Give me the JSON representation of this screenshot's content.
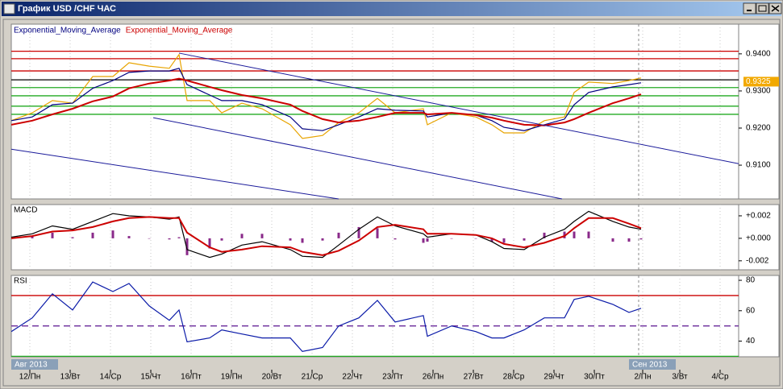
{
  "window": {
    "title": "График USD /CHF ЧАС"
  },
  "chart_data": [
    {
      "type": "line",
      "grid": true,
      "xlim": [
        -0.46,
        17.58
      ],
      "x": [
        -0.46,
        0.06,
        0.56,
        1.06,
        1.56,
        2.06,
        2.46,
        2.96,
        3.46,
        3.7,
        3.9,
        4.46,
        4.76,
        5.26,
        5.76,
        6.46,
        6.76,
        7.26,
        7.66,
        8.16,
        8.62,
        9.06,
        9.76,
        9.86,
        10.46,
        11.06,
        11.46,
        11.76,
        12.26,
        12.76,
        13.26,
        13.5,
        13.86,
        14.46,
        14.86,
        15.16
      ],
      "ylim": [
        0.9009,
        0.948
      ],
      "yticks": [
        {
          "value": 0.94,
          "label": "0.9400"
        },
        {
          "value": 0.93,
          "label": "0.9300"
        },
        {
          "value": 0.92,
          "label": "0.9200"
        },
        {
          "value": 0.91,
          "label": "0.9100"
        }
      ],
      "series": [
        {
          "color": "#e8a400",
          "values": [
            0.922,
            0.9241,
            0.9274,
            0.9267,
            0.9339,
            0.9339,
            0.9376,
            0.9367,
            0.9361,
            0.9398,
            0.9274,
            0.9274,
            0.9241,
            0.9267,
            0.9252,
            0.9209,
            0.9172,
            0.918,
            0.9215,
            0.9241,
            0.928,
            0.9241,
            0.9252,
            0.9209,
            0.9241,
            0.923,
            0.9209,
            0.9187,
            0.9187,
            0.922,
            0.923,
            0.9296,
            0.9324,
            0.932,
            0.9328,
            0.9335
          ]
        },
        {
          "name": "Exponential_Moving_Average",
          "color": "#000080",
          "values": [
            0.922,
            0.923,
            0.9263,
            0.9267,
            0.9307,
            0.9328,
            0.935,
            0.9354,
            0.9354,
            0.9361,
            0.9317,
            0.9289,
            0.9274,
            0.9274,
            0.9263,
            0.923,
            0.9198,
            0.9193,
            0.9209,
            0.923,
            0.9252,
            0.9248,
            0.9246,
            0.923,
            0.9241,
            0.9235,
            0.922,
            0.9202,
            0.9193,
            0.9209,
            0.9224,
            0.9263,
            0.9296,
            0.9311,
            0.9317,
            0.9322
          ]
        },
        {
          "name": "Exponential_Moving_Average",
          "color": "#cc0000",
          "values": [
            0.9209,
            0.922,
            0.9237,
            0.9252,
            0.9272,
            0.9285,
            0.9307,
            0.932,
            0.9328,
            0.9333,
            0.9328,
            0.9311,
            0.9302,
            0.9289,
            0.928,
            0.9263,
            0.9246,
            0.9224,
            0.9215,
            0.922,
            0.923,
            0.9241,
            0.9241,
            0.9237,
            0.9241,
            0.9235,
            0.9228,
            0.922,
            0.9209,
            0.9207,
            0.9215,
            0.9224,
            0.9241,
            0.9267,
            0.928,
            0.9291
          ]
        }
      ],
      "levels": [
        {
          "value": 0.9407,
          "color": "#cc0000"
        },
        {
          "value": 0.9387,
          "color": "#cc0000"
        },
        {
          "value": 0.9354,
          "color": "#cc0000"
        },
        {
          "value": 0.933,
          "color": "#000000"
        },
        {
          "value": 0.9309,
          "color": "#22aa22"
        },
        {
          "value": 0.9287,
          "color": "#22aa22"
        },
        {
          "value": 0.9259,
          "color": "#22aa22"
        },
        {
          "value": 0.9237,
          "color": "#22aa22"
        }
      ],
      "trendlines": [
        {
          "color": "#1a1a9a",
          "x": [
            3.7,
            17.58
          ],
          "values": [
            0.9402,
            0.9104
          ]
        },
        {
          "color": "#1a1a9a",
          "x": [
            3.06,
            13.2
          ],
          "values": [
            0.9228,
            0.9009
          ]
        },
        {
          "color": "#1a1a9a",
          "x": [
            -0.46,
            7.66
          ],
          "values": [
            0.9143,
            0.9009
          ]
        }
      ],
      "price_label": {
        "value": 0.9325,
        "label": "0.9325"
      }
    },
    {
      "type": "line",
      "title": "MACD",
      "grid": true,
      "xlim": [
        -0.46,
        17.58
      ],
      "x": [
        -0.46,
        0.06,
        0.56,
        1.06,
        1.56,
        2.06,
        2.46,
        2.96,
        3.46,
        3.7,
        3.9,
        4.46,
        4.76,
        5.26,
        5.76,
        6.46,
        6.76,
        7.26,
        7.66,
        8.16,
        8.62,
        9.06,
        9.76,
        9.86,
        10.46,
        11.06,
        11.46,
        11.76,
        12.26,
        12.76,
        13.26,
        13.5,
        13.86,
        14.46,
        14.86,
        15.16
      ],
      "ylim": [
        -0.0028,
        0.003
      ],
      "yticks": [
        {
          "value": 0.002,
          "label": "+0.002"
        },
        {
          "value": 0,
          "label": "+0.000"
        },
        {
          "value": -0.002,
          "label": "-0.002"
        }
      ],
      "histogram": {
        "color": "#8a2a8a",
        "values": [
          0.0001,
          0.0002,
          0.0005,
          0.0001,
          0.0005,
          0.0007,
          0.0002,
          0,
          -0.0001,
          0.0001,
          -0.0015,
          -0.0009,
          -0.0002,
          0.0004,
          0.0004,
          -0.0002,
          -0.0004,
          -0.0002,
          0.0005,
          0.001,
          0.0009,
          -0.0001,
          -0.0004,
          -0.0003,
          0,
          0,
          -0.0003,
          -0.0004,
          -0.0002,
          0.0005,
          0.0006,
          0.0006,
          0.0006,
          -0.0003,
          -0.0003,
          -0.0001
        ]
      },
      "series": [
        {
          "color": "#000000",
          "values": [
            0.0001,
            0.0004,
            0.0011,
            0.0008,
            0.0015,
            0.0022,
            0.002,
            0.0019,
            0.0017,
            0.0019,
            -0.001,
            -0.0017,
            -0.0014,
            -0.0006,
            -0.0003,
            -0.001,
            -0.0016,
            -0.0017,
            -0.0006,
            0.0008,
            0.0019,
            0.0011,
            0.0004,
            0.0001,
            0.0004,
            0.0003,
            -0.0003,
            -0.0009,
            -0.001,
            0.0001,
            0.0008,
            0.0015,
            0.0024,
            0.0015,
            0.001,
            0.0008
          ]
        },
        {
          "color": "#cc0000",
          "values": [
            0,
            0.0002,
            0.0006,
            0.0007,
            0.001,
            0.0015,
            0.0018,
            0.0019,
            0.0018,
            0.0018,
            0.0005,
            -0.0008,
            -0.0012,
            -0.001,
            -0.0007,
            -0.0008,
            -0.0012,
            -0.0015,
            -0.0011,
            -0.0002,
            0.001,
            0.0012,
            0.0008,
            0.0004,
            0.0004,
            0.0003,
            0,
            -0.0005,
            -0.0008,
            -0.0004,
            0.0002,
            0.0009,
            0.0018,
            0.0018,
            0.0013,
            0.0009
          ]
        }
      ]
    },
    {
      "type": "line",
      "title": "RSI",
      "grid": true,
      "xlim": [
        -0.46,
        17.58
      ],
      "x": [
        -0.46,
        0.06,
        0.56,
        1.06,
        1.56,
        2.06,
        2.46,
        2.96,
        3.46,
        3.7,
        3.9,
        4.46,
        4.76,
        5.26,
        5.76,
        6.46,
        6.76,
        7.26,
        7.66,
        8.16,
        8.62,
        9.06,
        9.76,
        9.86,
        10.46,
        11.06,
        11.46,
        11.76,
        12.26,
        12.76,
        13.26,
        13.5,
        13.86,
        14.46,
        14.86,
        15.16
      ],
      "ylim": [
        29.7,
        83.2
      ],
      "yticks": [
        80,
        60,
        40
      ],
      "series": [
        {
          "color": "#0a1aa8",
          "values": [
            46.3,
            55.3,
            71.1,
            60.5,
            78.9,
            72.6,
            77.9,
            63.2,
            53.7,
            60.5,
            39.5,
            42.1,
            47.4,
            44.7,
            42.1,
            42.1,
            33.2,
            35.8,
            50.0,
            55.3,
            66.8,
            52.6,
            56.8,
            43.2,
            50.0,
            46.3,
            42.1,
            42.1,
            47.4,
            55.3,
            55.3,
            67.4,
            69.5,
            64.2,
            58.9,
            61.6
          ]
        }
      ],
      "levels": [
        {
          "value": 70,
          "color": "#cc0000"
        },
        {
          "value": 50,
          "color": "#6a2a9a",
          "dashed": true
        },
        {
          "value": 30,
          "color": "#22aa22"
        }
      ],
      "xticks": [
        {
          "value": 0,
          "label": "12/Пн"
        },
        {
          "value": 1,
          "label": "13/Вт"
        },
        {
          "value": 2,
          "label": "14/Ср"
        },
        {
          "value": 3,
          "label": "15/Чт"
        },
        {
          "value": 4,
          "label": "16/Пт"
        },
        {
          "value": 5,
          "label": "19/Пн"
        },
        {
          "value": 6,
          "label": "20/Вт"
        },
        {
          "value": 7,
          "label": "21/Ср"
        },
        {
          "value": 8,
          "label": "22/Чт"
        },
        {
          "value": 9,
          "label": "23/Пт"
        },
        {
          "value": 10,
          "label": "26/Пн"
        },
        {
          "value": 11,
          "label": "27/Вт"
        },
        {
          "value": 12,
          "label": "28/Ср"
        },
        {
          "value": 13,
          "label": "29/Чт"
        },
        {
          "value": 14,
          "label": "30/Пт"
        },
        {
          "value": 15.2,
          "label": "2/Пн"
        },
        {
          "value": 16.12,
          "label": "3/Вт"
        },
        {
          "value": 17.12,
          "label": "4/Ср"
        }
      ],
      "month_labels": [
        "Авг 2013",
        "Сен 2013"
      ]
    }
  ]
}
